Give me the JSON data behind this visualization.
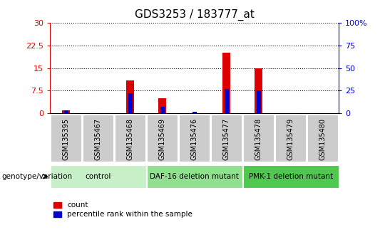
{
  "title": "GDS3253 / 183777_at",
  "samples": [
    "GSM135395",
    "GSM135467",
    "GSM135468",
    "GSM135469",
    "GSM135476",
    "GSM135477",
    "GSM135478",
    "GSM135479",
    "GSM135480"
  ],
  "count_values": [
    1.0,
    0.0,
    11.0,
    5.0,
    0.0,
    20.0,
    15.0,
    0.0,
    0.0
  ],
  "percentile_values": [
    3.0,
    0.0,
    22.0,
    7.0,
    1.5,
    27.0,
    25.0,
    0.0,
    0.0
  ],
  "left_ylim": [
    0,
    30
  ],
  "right_ylim": [
    0,
    100
  ],
  "left_yticks": [
    0,
    7.5,
    15,
    22.5,
    30
  ],
  "right_yticks": [
    0,
    25,
    50,
    75,
    100
  ],
  "left_ytick_labels": [
    "0",
    "7.5",
    "15",
    "22.5",
    "30"
  ],
  "right_ytick_labels": [
    "0",
    "25",
    "50",
    "75",
    "100%"
  ],
  "count_color": "#dd0000",
  "percentile_color": "#0000cc",
  "bar_width": 0.25,
  "groups": [
    {
      "label": "control",
      "samples": [
        "GSM135395",
        "GSM135467",
        "GSM135468"
      ],
      "color": "#c8f0c8"
    },
    {
      "label": "DAF-16 deletion mutant",
      "samples": [
        "GSM135469",
        "GSM135476",
        "GSM135477"
      ],
      "color": "#90e090"
    },
    {
      "label": "PMK-1 deletion mutant",
      "samples": [
        "GSM135478",
        "GSM135479",
        "GSM135480"
      ],
      "color": "#50c850"
    }
  ],
  "xticklabel_bg": "#cccccc",
  "grid_color": "#000000",
  "grid_linestyle": "dotted",
  "grid_linewidth": 0.8,
  "genotype_label": "genotype/variation",
  "legend_count": "count",
  "legend_percentile": "percentile rank within the sample",
  "background_color": "#ffffff",
  "plot_bg": "#ffffff"
}
